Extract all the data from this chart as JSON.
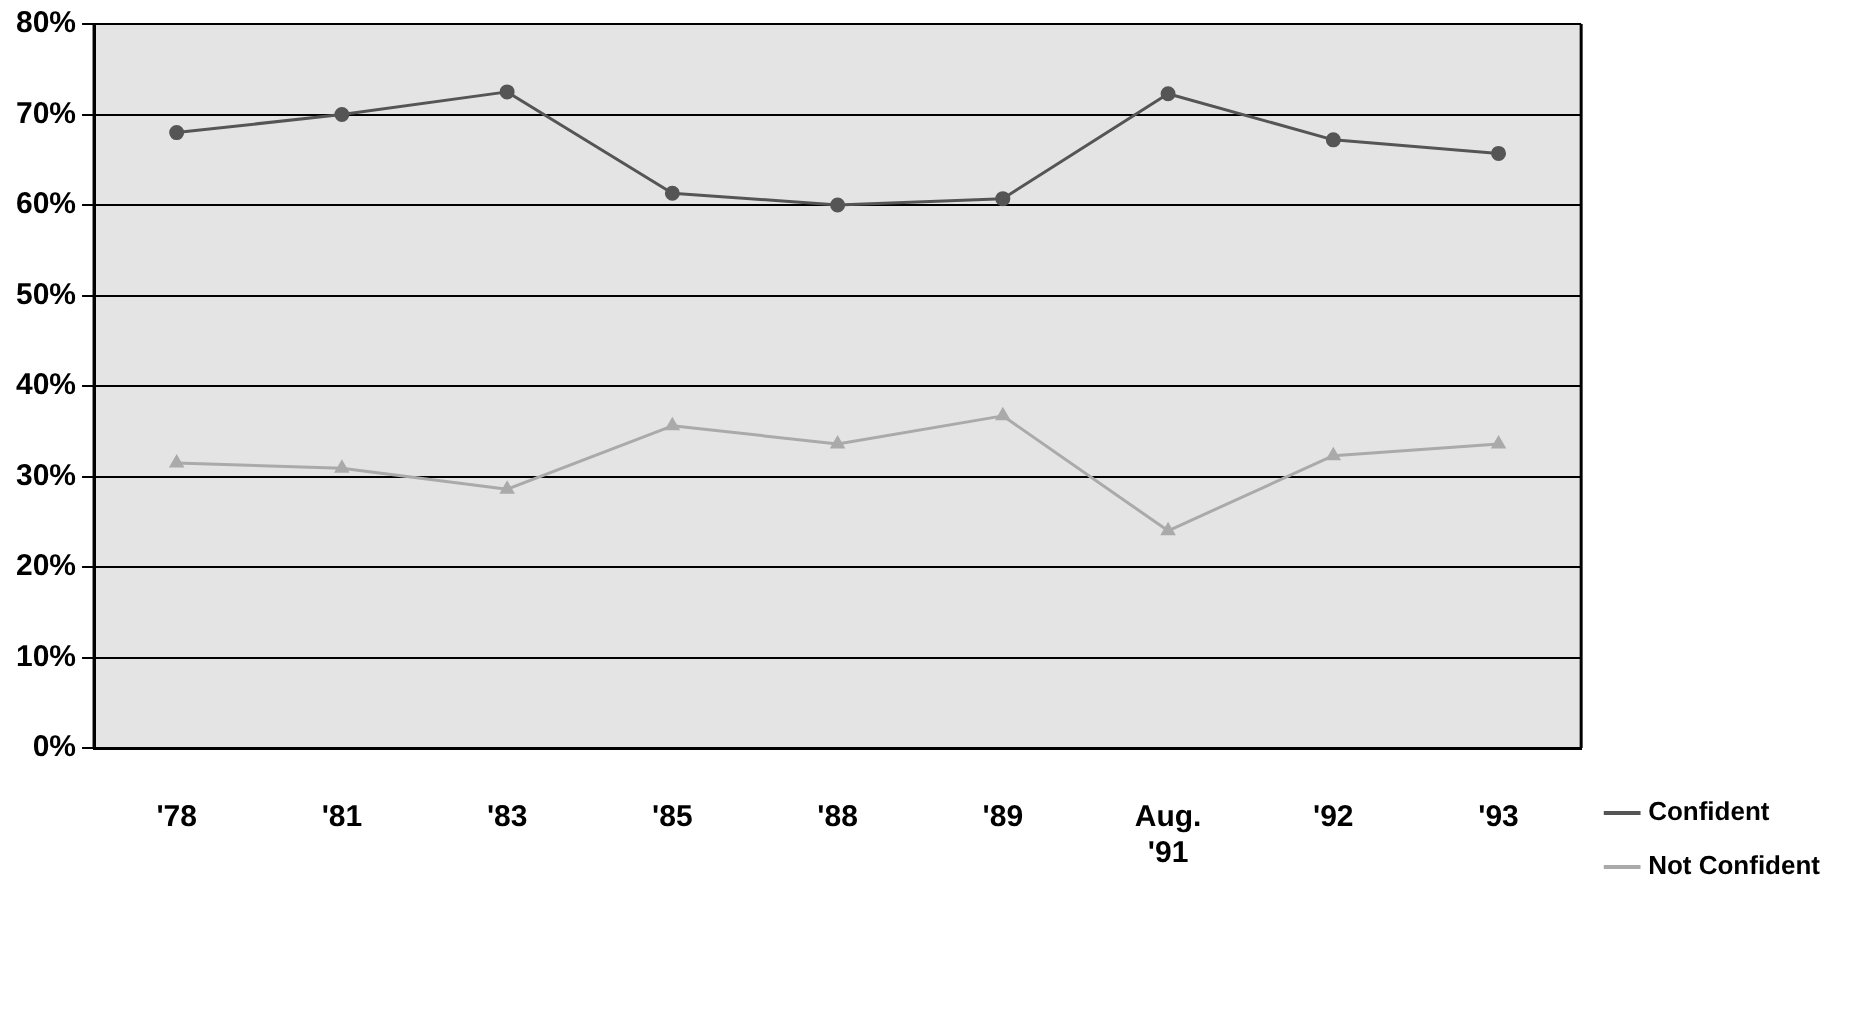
{
  "chart_data": {
    "type": "line",
    "categories": [
      "'78",
      "'81",
      "'83",
      "'85",
      "'88",
      "'89",
      "Aug.\n'91",
      "'92",
      "'93"
    ],
    "series": [
      {
        "name": "Confident",
        "color": "#555555",
        "values": [
          68,
          70,
          72.5,
          61.3,
          60,
          60.7,
          72.3,
          67.2,
          65.7
        ]
      },
      {
        "name": "Not Confident",
        "color": "#aaaaaa",
        "marker": "triangle",
        "values": [
          31.5,
          30.9,
          28.6,
          35.6,
          33.6,
          36.7,
          24,
          32.3,
          33.6
        ]
      }
    ],
    "ylim": [
      0,
      80
    ],
    "yticks": [
      {
        "value": 0,
        "label": "0%"
      },
      {
        "value": 10,
        "label": "10%"
      },
      {
        "value": 20,
        "label": "20%"
      },
      {
        "value": 30,
        "label": "30%"
      },
      {
        "value": 40,
        "label": "40%"
      },
      {
        "value": 50,
        "label": "50%"
      },
      {
        "value": 60,
        "label": "60%"
      },
      {
        "value": 70,
        "label": "70%"
      },
      {
        "value": 80,
        "label": "80%"
      }
    ],
    "grid": "y",
    "legend": "bottom right",
    "marker": "circle",
    "line_style": "solid"
  }
}
